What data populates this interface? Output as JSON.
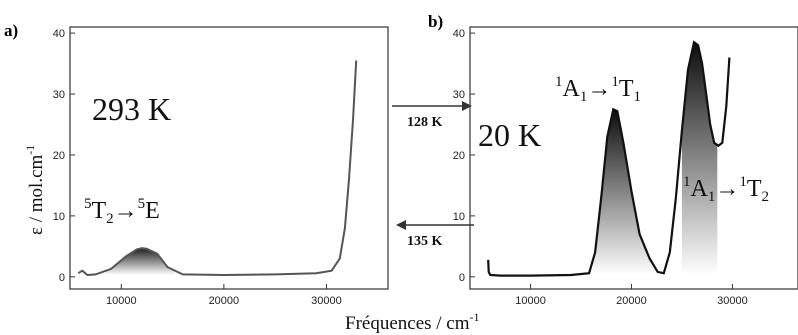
{
  "figure": {
    "panel_a_label": "a)",
    "panel_b_label": "b)",
    "xlabel": "Fréquences / cm",
    "xlabel_sup": "-1",
    "ylabel": "ε / mol.cm",
    "ylabel_sup": "-1"
  },
  "chart_data": [
    {
      "type": "line",
      "panel": "a",
      "temperature": "293 K",
      "annotation": {
        "pre": "5",
        "a": "T",
        "a_sub": "2",
        "arrow": "→",
        "post": "5",
        "b": "E"
      },
      "xlim": [
        5000,
        36000
      ],
      "ylim": [
        -2,
        41
      ],
      "xticks": [
        10000,
        20000,
        30000
      ],
      "yticks": [
        0,
        10,
        20,
        30,
        40
      ],
      "x": [
        5800,
        6200,
        6700,
        7500,
        9000,
        10500,
        11500,
        12000,
        12500,
        13500,
        14500,
        16000,
        20000,
        25000,
        29000,
        30500,
        31300,
        31800,
        32200,
        32600,
        32900
      ],
      "y": [
        0.6,
        1.0,
        0.3,
        0.4,
        1.3,
        3.4,
        4.5,
        4.7,
        4.6,
        3.8,
        1.6,
        0.4,
        0.3,
        0.4,
        0.6,
        1.0,
        3.0,
        8.0,
        16.0,
        26.0,
        35.5
      ],
      "fill_band": [
        8500,
        15200
      ]
    },
    {
      "type": "line",
      "panel": "b",
      "temperature": "20 K",
      "annotations": [
        {
          "pre": "1",
          "a": "A",
          "a_sub": "1",
          "arrow": "→",
          "post": "1",
          "b": "T",
          "b_sub": "1"
        },
        {
          "pre": "1",
          "a": "A",
          "a_sub": "1",
          "arrow": "→",
          "post": "1",
          "b": "T",
          "b_sub": "2"
        }
      ],
      "xlim": [
        4000,
        36500
      ],
      "ylim": [
        -2,
        41
      ],
      "xticks": [
        10000,
        20000,
        30000
      ],
      "yticks": [
        0,
        10,
        20,
        30,
        40
      ],
      "x": [
        5800,
        5850,
        6000,
        7000,
        10000,
        14000,
        15800,
        16400,
        17000,
        17600,
        18200,
        18600,
        19200,
        20000,
        20800,
        21800,
        22600,
        23200,
        23800,
        24400,
        25000,
        25600,
        26200,
        26600,
        27000,
        27400,
        27800,
        28200,
        28600,
        29000,
        29400,
        29700
      ],
      "y": [
        2.8,
        0.8,
        0.3,
        0.2,
        0.2,
        0.3,
        0.6,
        4.0,
        13.0,
        23.0,
        27.5,
        27.2,
        22.0,
        14.0,
        7.0,
        3.0,
        0.8,
        0.6,
        4.0,
        13.0,
        24.0,
        34.0,
        38.5,
        38.0,
        35.0,
        30.0,
        25.0,
        22.0,
        21.5,
        22.0,
        28.0,
        36.0
      ],
      "fill_bands": [
        [
          16200,
          22800
        ],
        [
          25000,
          28500
        ]
      ]
    }
  ],
  "arrows": [
    {
      "label": "128 K",
      "direction": "right"
    },
    {
      "label": "135 K",
      "direction": "left"
    }
  ]
}
